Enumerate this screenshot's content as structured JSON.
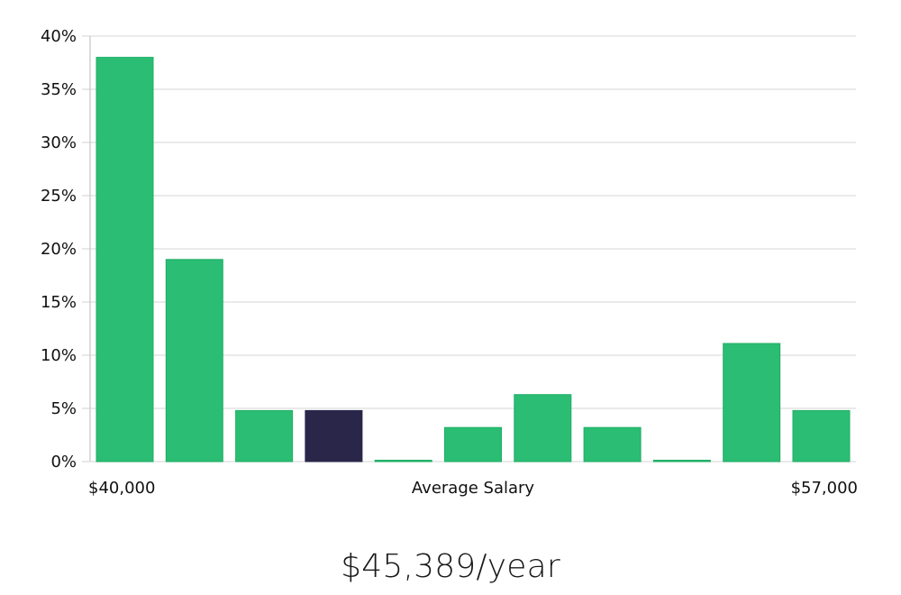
{
  "chart_data": {
    "type": "bar",
    "title": "",
    "xlabel": "Average Salary",
    "ylabel": "",
    "x_range_labels": [
      "$40,000",
      "$57,000"
    ],
    "y_ticks": [
      "0%",
      "5%",
      "10%",
      "15%",
      "20%",
      "25%",
      "30%",
      "35%",
      "40%"
    ],
    "ylim": [
      0,
      40
    ],
    "y_unit": "%",
    "grid": true,
    "legend": "none",
    "values": [
      38.0,
      19.0,
      4.8,
      4.8,
      0.0,
      3.2,
      6.3,
      3.2,
      0.0,
      11.1,
      4.8
    ],
    "highlight_index": 3,
    "colors": {
      "bar": "#2bbd74",
      "bar_stroke": "#1fae65",
      "highlight": "#29264a",
      "grid": "#e3e3e3",
      "axis": "#d0d0d0"
    }
  },
  "summary": {
    "salary_text": "$45,389/year"
  }
}
